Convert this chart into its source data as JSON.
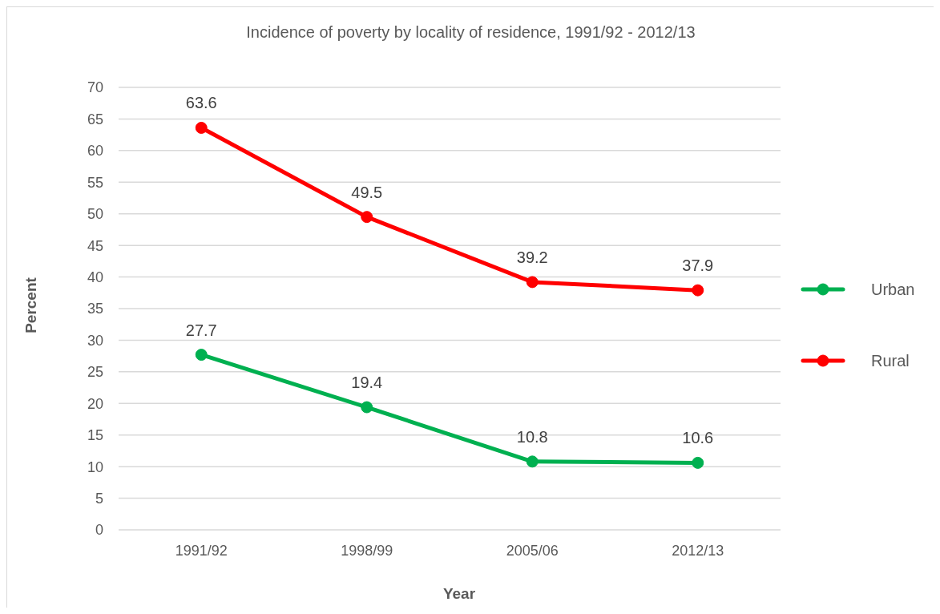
{
  "chart_data": {
    "type": "line",
    "title": "Incidence of poverty by locality of residence, 1991/92 - 2012/13",
    "xlabel": "Year",
    "ylabel": "Percent",
    "categories": [
      "1991/92",
      "1998/99",
      "2005/06",
      "2012/13"
    ],
    "series": [
      {
        "name": "Urban",
        "color": "#00b050",
        "values": [
          27.7,
          19.4,
          10.8,
          10.6
        ]
      },
      {
        "name": "Rural",
        "color": "#ff0000",
        "values": [
          63.6,
          49.5,
          39.2,
          37.9
        ]
      }
    ],
    "ylim": [
      0,
      70
    ],
    "yticks": [
      0,
      5,
      10,
      15,
      20,
      25,
      30,
      35,
      40,
      45,
      50,
      55,
      60,
      65,
      70
    ],
    "grid": "y",
    "legend": "right",
    "marker": "circle",
    "line_style": "solid",
    "data_labels": true
  }
}
